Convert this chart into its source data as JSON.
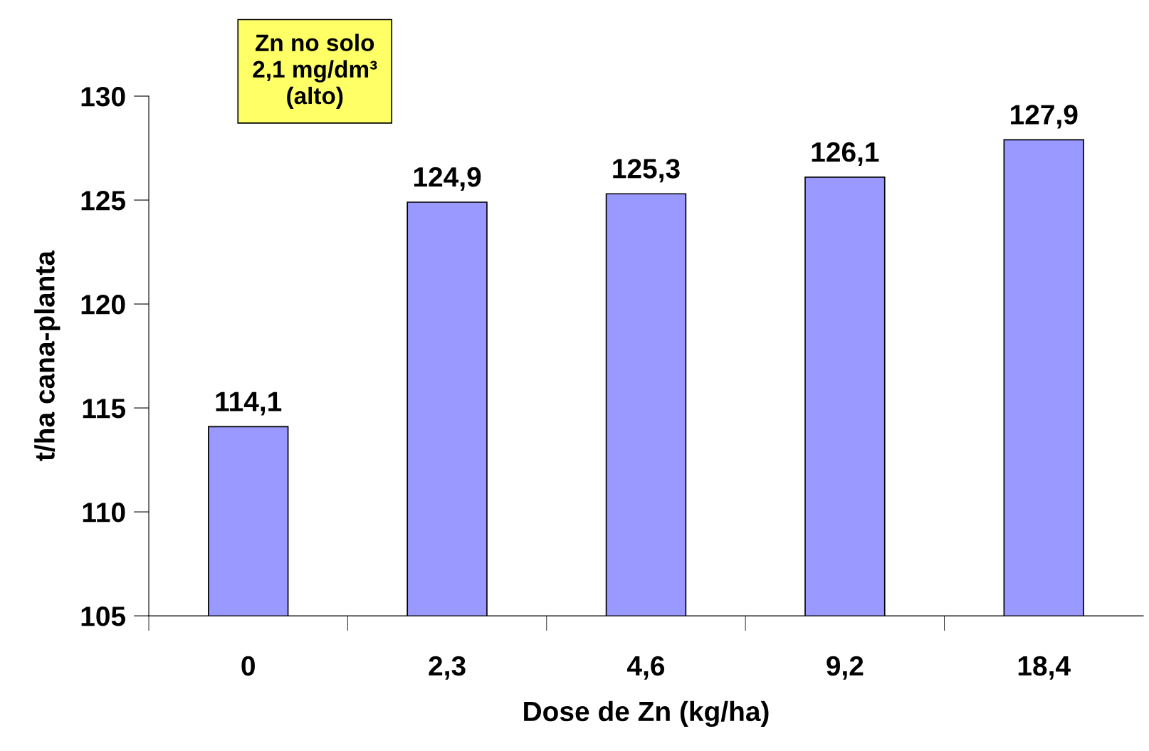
{
  "chart_data": {
    "type": "bar",
    "categories": [
      "0",
      "2,3",
      "4,6",
      "9,2",
      "18,4"
    ],
    "values": [
      114.1,
      124.9,
      125.3,
      126.1,
      127.9
    ],
    "value_labels": [
      "114,1",
      "124,9",
      "125,3",
      "126,1",
      "127,9"
    ],
    "color": "#9999ff",
    "xlabel": "Dose de Zn (kg/ha)",
    "ylabel": "t/ha cana-planta",
    "ylim": [
      105,
      130
    ],
    "yticks": [
      105,
      110,
      115,
      120,
      125,
      130
    ],
    "annotations": [
      "Zn no solo\n2,1 mg/dm³\n(alto)"
    ],
    "grid": false,
    "legend": false
  }
}
